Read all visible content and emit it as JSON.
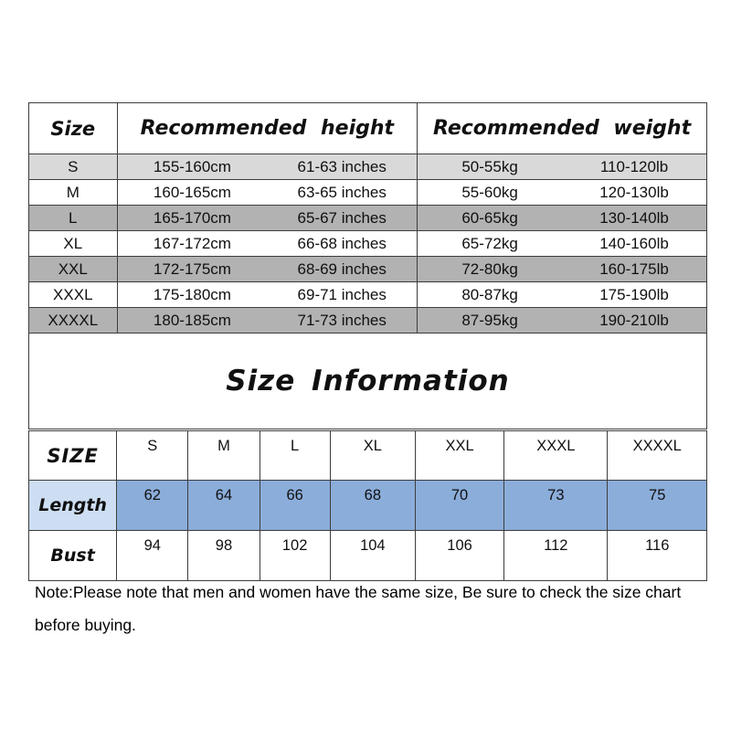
{
  "title": "Size Information",
  "note": "Note:Please note that men and women have the same size, Be sure to check the size chart before buying.",
  "colors": {
    "border": "#3d3d3d",
    "row_light_gray": "#d9d9d9",
    "row_dark_gray": "#b2b2b2",
    "length_label_bg": "#cddef2",
    "length_value_bg": "#8badda",
    "background": "#ffffff",
    "text": "#101010"
  },
  "size_table": {
    "headers": {
      "size": "Size",
      "height": "Recommended height",
      "weight": "Recommended weight"
    },
    "rows": [
      {
        "size": "S",
        "height_cm": "155-160cm",
        "height_in": "61-63 inches",
        "weight_kg": "50-55kg",
        "weight_lb": "110-120lb"
      },
      {
        "size": "M",
        "height_cm": "160-165cm",
        "height_in": "63-65 inches",
        "weight_kg": "55-60kg",
        "weight_lb": "120-130lb"
      },
      {
        "size": "L",
        "height_cm": "165-170cm",
        "height_in": "65-67 inches",
        "weight_kg": "60-65kg",
        "weight_lb": "130-140lb"
      },
      {
        "size": "XL",
        "height_cm": "167-172cm",
        "height_in": "66-68 inches",
        "weight_kg": "65-72kg",
        "weight_lb": "140-160lb"
      },
      {
        "size": "XXL",
        "height_cm": "172-175cm",
        "height_in": "68-69 inches",
        "weight_kg": "72-80kg",
        "weight_lb": "160-175lb"
      },
      {
        "size": "XXXL",
        "height_cm": "175-180cm",
        "height_in": "69-71 inches",
        "weight_kg": "80-87kg",
        "weight_lb": "175-190lb"
      },
      {
        "size": "XXXXL",
        "height_cm": "180-185cm",
        "height_in": "71-73 inches",
        "weight_kg": "87-95kg",
        "weight_lb": "190-210lb"
      }
    ]
  },
  "measure_table": {
    "corner_label": "SIZE",
    "sizes": [
      "S",
      "M",
      "L",
      "XL",
      "XXL",
      "XXXL",
      "XXXXL"
    ],
    "rows": [
      {
        "label": "Length",
        "values": [
          62,
          64,
          66,
          68,
          70,
          73,
          75
        ]
      },
      {
        "label": "Bust",
        "values": [
          94,
          98,
          102,
          104,
          106,
          112,
          116
        ]
      }
    ]
  }
}
